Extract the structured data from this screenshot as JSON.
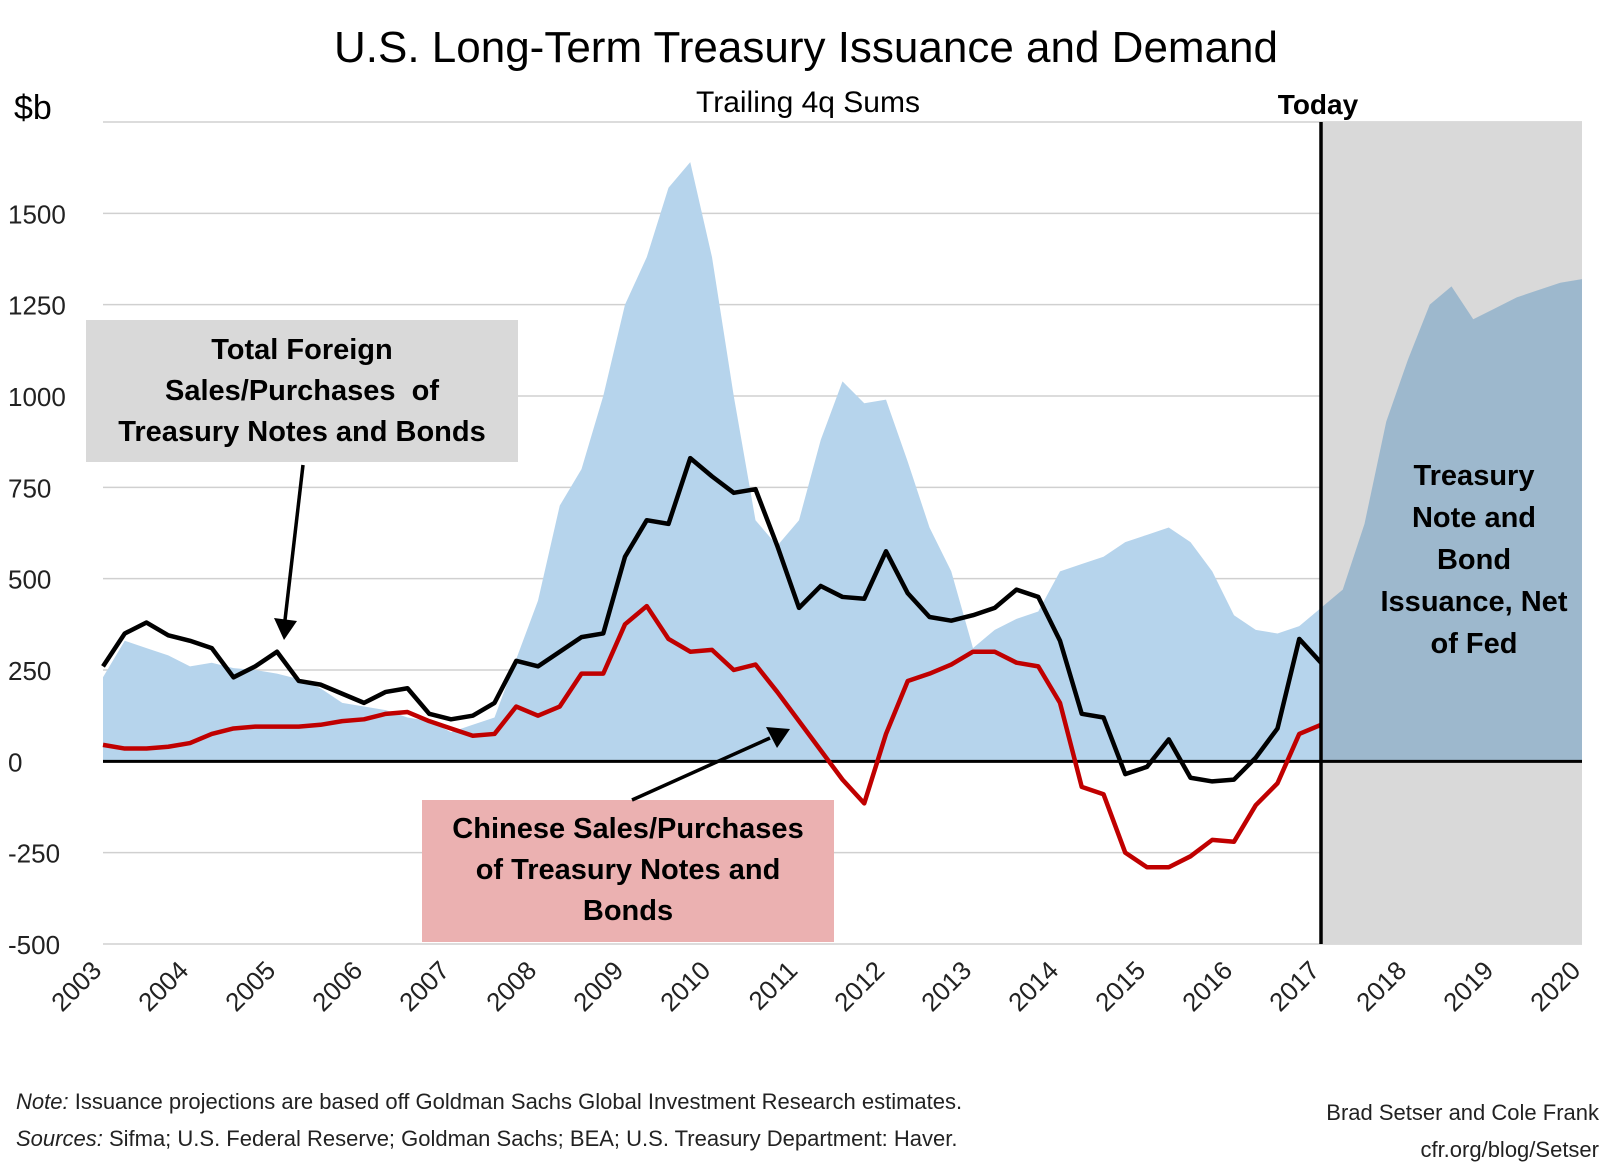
{
  "chart_data": {
    "type": "area",
    "title": "U.S. Long-Term Treasury Issuance and Demand",
    "subtitle": "Trailing 4q Sums",
    "ylabel": "$b",
    "ylim": [
      -500,
      1750
    ],
    "yticks": [
      1500,
      1250,
      1000,
      750,
      500,
      250,
      0,
      -250,
      -500
    ],
    "xlim": [
      2003,
      2020
    ],
    "xticks": [
      "2003",
      "2004",
      "2005",
      "2006",
      "2007",
      "2008",
      "2009",
      "2010",
      "2011",
      "2012",
      "2013",
      "2014",
      "2015",
      "2016",
      "2017",
      "2018",
      "2019",
      "2020"
    ],
    "grid": true,
    "today_label": "Today",
    "today_x": 2017,
    "series": [
      {
        "name": "Treasury Note and Bond Issuance, Net of Fed",
        "kind": "area",
        "color": "#b6d4ec",
        "projection_color": "#9db8cd",
        "x": [
          2003,
          2003.25,
          2003.5,
          2003.75,
          2004,
          2004.25,
          2004.5,
          2004.75,
          2005,
          2005.25,
          2005.5,
          2005.75,
          2006,
          2006.25,
          2006.5,
          2006.75,
          2007,
          2007.25,
          2007.5,
          2007.75,
          2008,
          2008.25,
          2008.5,
          2008.75,
          2009,
          2009.25,
          2009.5,
          2009.75,
          2010,
          2010.25,
          2010.5,
          2010.75,
          2011,
          2011.25,
          2011.5,
          2011.75,
          2012,
          2012.25,
          2012.5,
          2012.75,
          2013,
          2013.25,
          2013.5,
          2013.75,
          2014,
          2014.25,
          2014.5,
          2014.75,
          2015,
          2015.25,
          2015.5,
          2015.75,
          2016,
          2016.25,
          2016.5,
          2016.75,
          2017,
          2017.25,
          2017.5,
          2017.75,
          2018,
          2018.25,
          2018.5,
          2018.75,
          2019,
          2019.25,
          2019.5,
          2019.75,
          2020
        ],
        "values": [
          230,
          330,
          310,
          290,
          260,
          270,
          255,
          250,
          240,
          225,
          200,
          160,
          150,
          140,
          120,
          110,
          80,
          100,
          120,
          280,
          440,
          700,
          800,
          1000,
          1250,
          1380,
          1570,
          1640,
          1380,
          1000,
          660,
          590,
          660,
          880,
          1040,
          980,
          990,
          820,
          640,
          520,
          310,
          360,
          390,
          410,
          520,
          540,
          560,
          600,
          620,
          640,
          600,
          520,
          400,
          360,
          350,
          370,
          420,
          470,
          650,
          930,
          1100,
          1250,
          1300,
          1210,
          1240,
          1270,
          1290,
          1310,
          1320
        ]
      },
      {
        "name": "Total Foreign Sales/Purchases of Treasury Notes and Bonds",
        "kind": "line",
        "color": "#000000",
        "x": [
          2003,
          2003.25,
          2003.5,
          2003.75,
          2004,
          2004.25,
          2004.5,
          2004.75,
          2005,
          2005.25,
          2005.5,
          2005.75,
          2006,
          2006.25,
          2006.5,
          2006.75,
          2007,
          2007.25,
          2007.5,
          2007.75,
          2008,
          2008.25,
          2008.5,
          2008.75,
          2009,
          2009.25,
          2009.5,
          2009.75,
          2010,
          2010.25,
          2010.5,
          2010.75,
          2011,
          2011.25,
          2011.5,
          2011.75,
          2012,
          2012.25,
          2012.5,
          2012.75,
          2013,
          2013.25,
          2013.5,
          2013.75,
          2014,
          2014.25,
          2014.5,
          2014.75,
          2015,
          2015.25,
          2015.5,
          2015.75,
          2016,
          2016.25,
          2016.5,
          2016.75,
          2017
        ],
        "values": [
          260,
          350,
          380,
          345,
          330,
          310,
          230,
          260,
          300,
          220,
          210,
          185,
          160,
          190,
          200,
          130,
          115,
          125,
          160,
          275,
          260,
          300,
          340,
          350,
          560,
          660,
          650,
          830,
          780,
          735,
          745,
          590,
          420,
          480,
          450,
          445,
          575,
          460,
          395,
          385,
          400,
          420,
          470,
          450,
          330,
          130,
          120,
          -35,
          -15,
          60,
          -45,
          -55,
          -50,
          10,
          90,
          335,
          270
        ]
      },
      {
        "name": "Chinese Sales/Purchases of Treasury Notes and Bonds",
        "kind": "line",
        "color": "#c00000",
        "x": [
          2003,
          2003.25,
          2003.5,
          2003.75,
          2004,
          2004.25,
          2004.5,
          2004.75,
          2005,
          2005.25,
          2005.5,
          2005.75,
          2006,
          2006.25,
          2006.5,
          2006.75,
          2007,
          2007.25,
          2007.5,
          2007.75,
          2008,
          2008.25,
          2008.5,
          2008.75,
          2009,
          2009.25,
          2009.5,
          2009.75,
          2010,
          2010.25,
          2010.5,
          2010.75,
          2011,
          2011.25,
          2011.5,
          2011.75,
          2012,
          2012.25,
          2012.5,
          2012.75,
          2013,
          2013.25,
          2013.5,
          2013.75,
          2014,
          2014.25,
          2014.5,
          2014.75,
          2015,
          2015.25,
          2015.5,
          2015.75,
          2016,
          2016.25,
          2016.5,
          2016.75,
          2017
        ],
        "values": [
          45,
          35,
          35,
          40,
          50,
          75,
          90,
          95,
          95,
          95,
          100,
          110,
          115,
          130,
          135,
          110,
          90,
          70,
          75,
          150,
          125,
          150,
          240,
          240,
          375,
          425,
          335,
          300,
          305,
          250,
          265,
          190,
          110,
          30,
          -50,
          -115,
          75,
          220,
          240,
          265,
          300,
          300,
          270,
          260,
          160,
          -70,
          -90,
          -250,
          -290,
          -290,
          -260,
          -215,
          -220,
          -120,
          -60,
          75,
          100
        ]
      }
    ],
    "annotations": {
      "foreign_label": [
        "Total Foreign",
        "Sales/Purchases  of",
        "Treasury Notes and Bonds"
      ],
      "chinese_label": [
        "Chinese Sales/Purchases",
        "of Treasury Notes and",
        "Bonds"
      ],
      "issuance_label": [
        "Treasury",
        "Note and",
        "Bond",
        "Issuance, Net",
        "of Fed"
      ]
    },
    "colors": {
      "foreign_box": "#d9d9d9",
      "chinese_box": "#ebb1b1",
      "projection_shade": "#d9d9d9"
    }
  },
  "footer": {
    "note_prefix": "Note:",
    "note_text": " Issuance projections are based off Goldman Sachs Global Investment Research estimates.",
    "sources_prefix": "Sources:",
    "sources_text": " Sifma; U.S. Federal Reserve; Goldman Sachs; BEA; U.S. Treasury Department: Haver.",
    "credit": "Brad Setser and Cole Frank",
    "site": "cfr.org/blog/Setser"
  }
}
